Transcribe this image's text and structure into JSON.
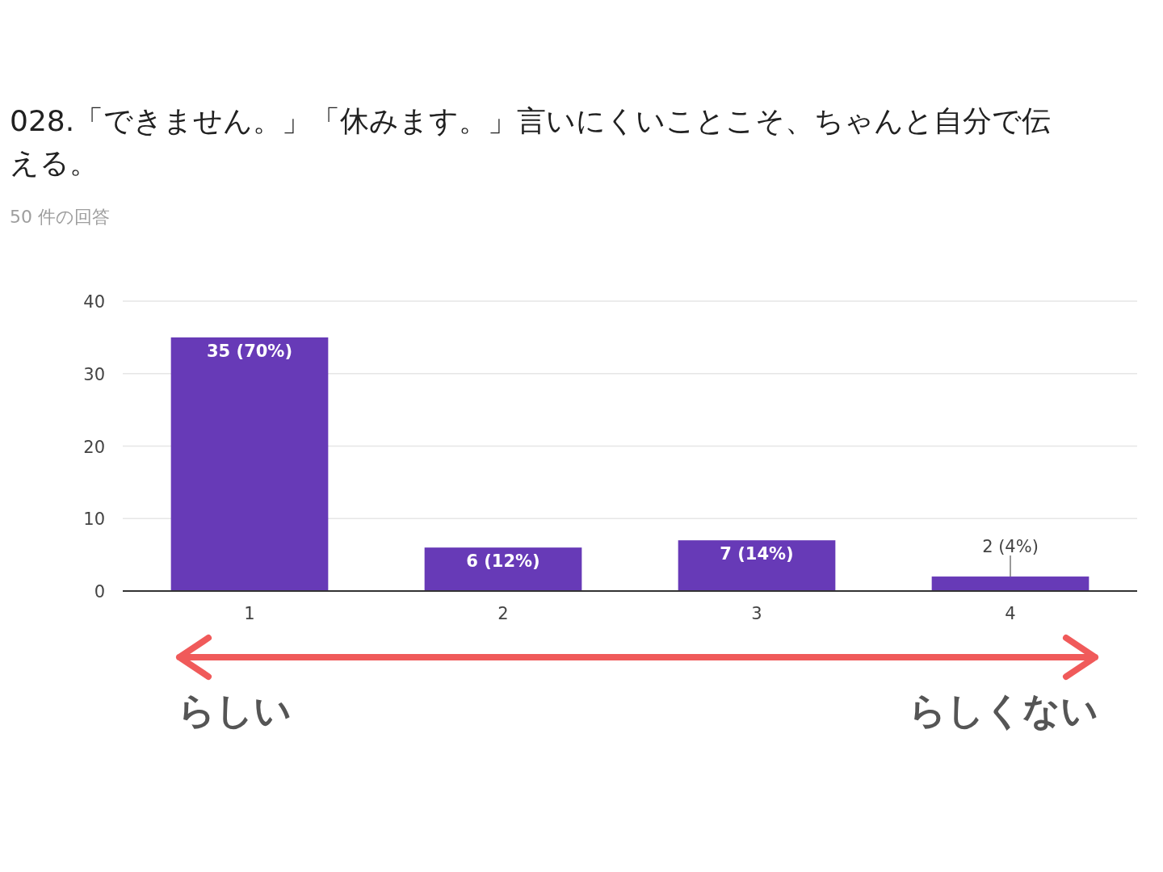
{
  "chart_data": {
    "type": "bar",
    "title": "028.「できません。」「休みます。」言いにくいことこそ、ちゃんと自分で伝える。",
    "subtitle": "50 件の回答",
    "categories": [
      "1",
      "2",
      "3",
      "4"
    ],
    "values": [
      35,
      6,
      7,
      2
    ],
    "value_labels": [
      "35 (70%)",
      "6 (12%)",
      "7 (14%)",
      "2 (4%)"
    ],
    "color": "#673ab7",
    "ylim": [
      0,
      40
    ],
    "yticks": [
      0,
      10,
      20,
      30,
      40
    ],
    "grid": "y",
    "annotations": [
      "らしい",
      "らしくない"
    ]
  }
}
